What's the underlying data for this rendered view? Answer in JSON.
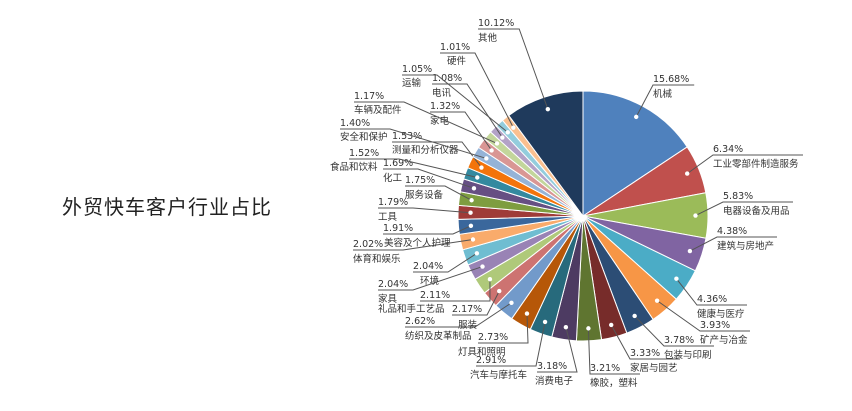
{
  "chart_data": {
    "type": "pie",
    "title": "外贸快车客户行业占比",
    "start": "top",
    "direction": "clockwise",
    "slices": [
      {
        "label": "机械",
        "value": 15.68,
        "text": "15.68%",
        "color": "#4F81BD"
      },
      {
        "label": "工业零部件制造服务",
        "value": 6.34,
        "text": "6.34%",
        "color": "#C0504D"
      },
      {
        "label": "电器设备及用品",
        "value": 5.83,
        "text": "5.83%",
        "color": "#9BBB59"
      },
      {
        "label": "建筑与房地产",
        "value": 4.38,
        "text": "4.38%",
        "color": "#8064A2"
      },
      {
        "label": "健康与医疗",
        "value": 4.36,
        "text": "4.36%",
        "color": "#4BACC6"
      },
      {
        "label": "矿产与冶金",
        "value": 3.93,
        "text": "3.93%",
        "color": "#F79646"
      },
      {
        "label": "包装与印刷",
        "value": 3.78,
        "text": "3.78%",
        "color": "#2C4D75"
      },
      {
        "label": "家居与园艺",
        "value": 3.33,
        "text": "3.33%",
        "color": "#772C2A"
      },
      {
        "label": "橡胶，塑料",
        "value": 3.21,
        "text": "3.21%",
        "color": "#5F7530"
      },
      {
        "label": "消费电子",
        "value": 3.18,
        "text": "3.18%",
        "color": "#4D3B62"
      },
      {
        "label": "汽车与摩托车",
        "value": 2.91,
        "text": "2.91%",
        "color": "#276A7C"
      },
      {
        "label": "灯具和照明",
        "value": 2.73,
        "text": "2.73%",
        "color": "#B65708"
      },
      {
        "label": "纺织及皮革制品",
        "value": 2.62,
        "text": "2.62%",
        "color": "#729ACA"
      },
      {
        "label": "服装",
        "value": 2.17,
        "text": "2.17%",
        "color": "#CD7371"
      },
      {
        "label": "礼品和手工艺品",
        "value": 2.11,
        "text": "2.11%",
        "color": "#AFC97A"
      },
      {
        "label": "家具",
        "value": 2.04,
        "text": "2.04%",
        "color": "#9983B5"
      },
      {
        "label": "环境",
        "value": 2.04,
        "text": "2.04%",
        "color": "#6FBDD1"
      },
      {
        "label": "体育和娱乐",
        "value": 2.02,
        "text": "2.02%",
        "color": "#F9AB6B"
      },
      {
        "label": "美容及个人护理",
        "value": 1.91,
        "text": "1.91%",
        "color": "#3A679C"
      },
      {
        "label": "工具",
        "value": 1.79,
        "text": "1.79%",
        "color": "#9F3B38"
      },
      {
        "label": "服务设备",
        "value": 1.75,
        "text": "1.75%",
        "color": "#7E9D40"
      },
      {
        "label": "化工",
        "value": 1.69,
        "text": "1.69%",
        "color": "#664F83"
      },
      {
        "label": "食品和饮料",
        "value": 1.52,
        "text": "1.52%",
        "color": "#34899F"
      },
      {
        "label": "测量和分析仪器",
        "value": 1.53,
        "text": "1.53%",
        "color": "#F3740B"
      },
      {
        "label": "安全和保护",
        "value": 1.4,
        "text": "1.40%",
        "color": "#95B3D7"
      },
      {
        "label": "家电",
        "value": 1.32,
        "text": "1.32%",
        "color": "#D99694"
      },
      {
        "label": "车辆及配件",
        "value": 1.17,
        "text": "1.17%",
        "color": "#C3D69B"
      },
      {
        "label": "电讯",
        "value": 1.08,
        "text": "1.08%",
        "color": "#B3A2C7"
      },
      {
        "label": "运输",
        "value": 1.05,
        "text": "1.05%",
        "color": "#93CDDD"
      },
      {
        "label": "硬件",
        "value": 1.01,
        "text": "1.01%",
        "color": "#FAC090"
      },
      {
        "label": "其他",
        "value": 10.12,
        "text": "10.12%",
        "color": "#1F3A5C"
      }
    ]
  }
}
